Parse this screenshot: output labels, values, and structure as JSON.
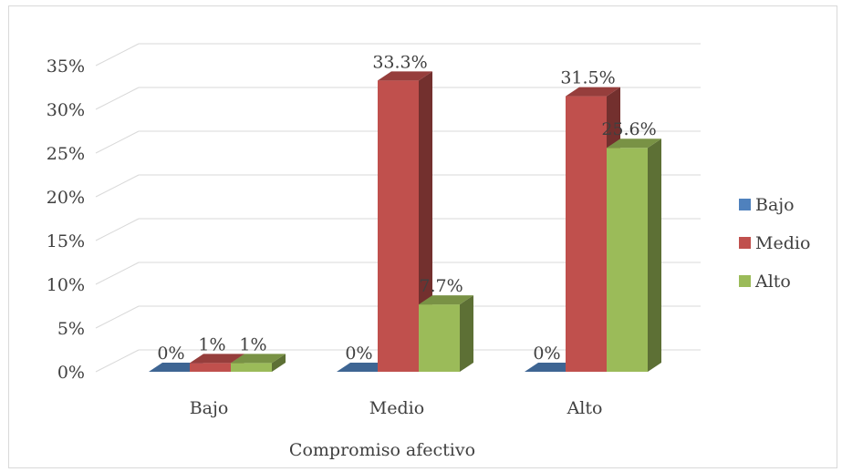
{
  "chart_data": {
    "type": "bar",
    "style": "3d-clustered-column",
    "categories": [
      "Bajo",
      "Medio",
      "Alto"
    ],
    "series": [
      {
        "name": "Bajo",
        "color": "#4f81bd",
        "values": [
          0,
          0,
          0
        ],
        "labels": [
          "0%",
          "0%",
          "0%"
        ]
      },
      {
        "name": "Medio",
        "color": "#c0504d",
        "values": [
          1,
          33.3,
          31.5
        ],
        "labels": [
          "1%",
          "33.3%",
          "31.5%"
        ]
      },
      {
        "name": "Alto",
        "color": "#9bbb59",
        "values": [
          1,
          7.7,
          25.6
        ],
        "labels": [
          "1%",
          "7.7%",
          "25.6%"
        ]
      }
    ],
    "xlabel": "Compromiso afectivo",
    "ylabel": "",
    "ylim": [
      0,
      35
    ],
    "yticks": [
      "0%",
      "5%",
      "10%",
      "15%",
      "20%",
      "25%",
      "30%",
      "35%"
    ],
    "grid": true,
    "legend_position": "right"
  }
}
